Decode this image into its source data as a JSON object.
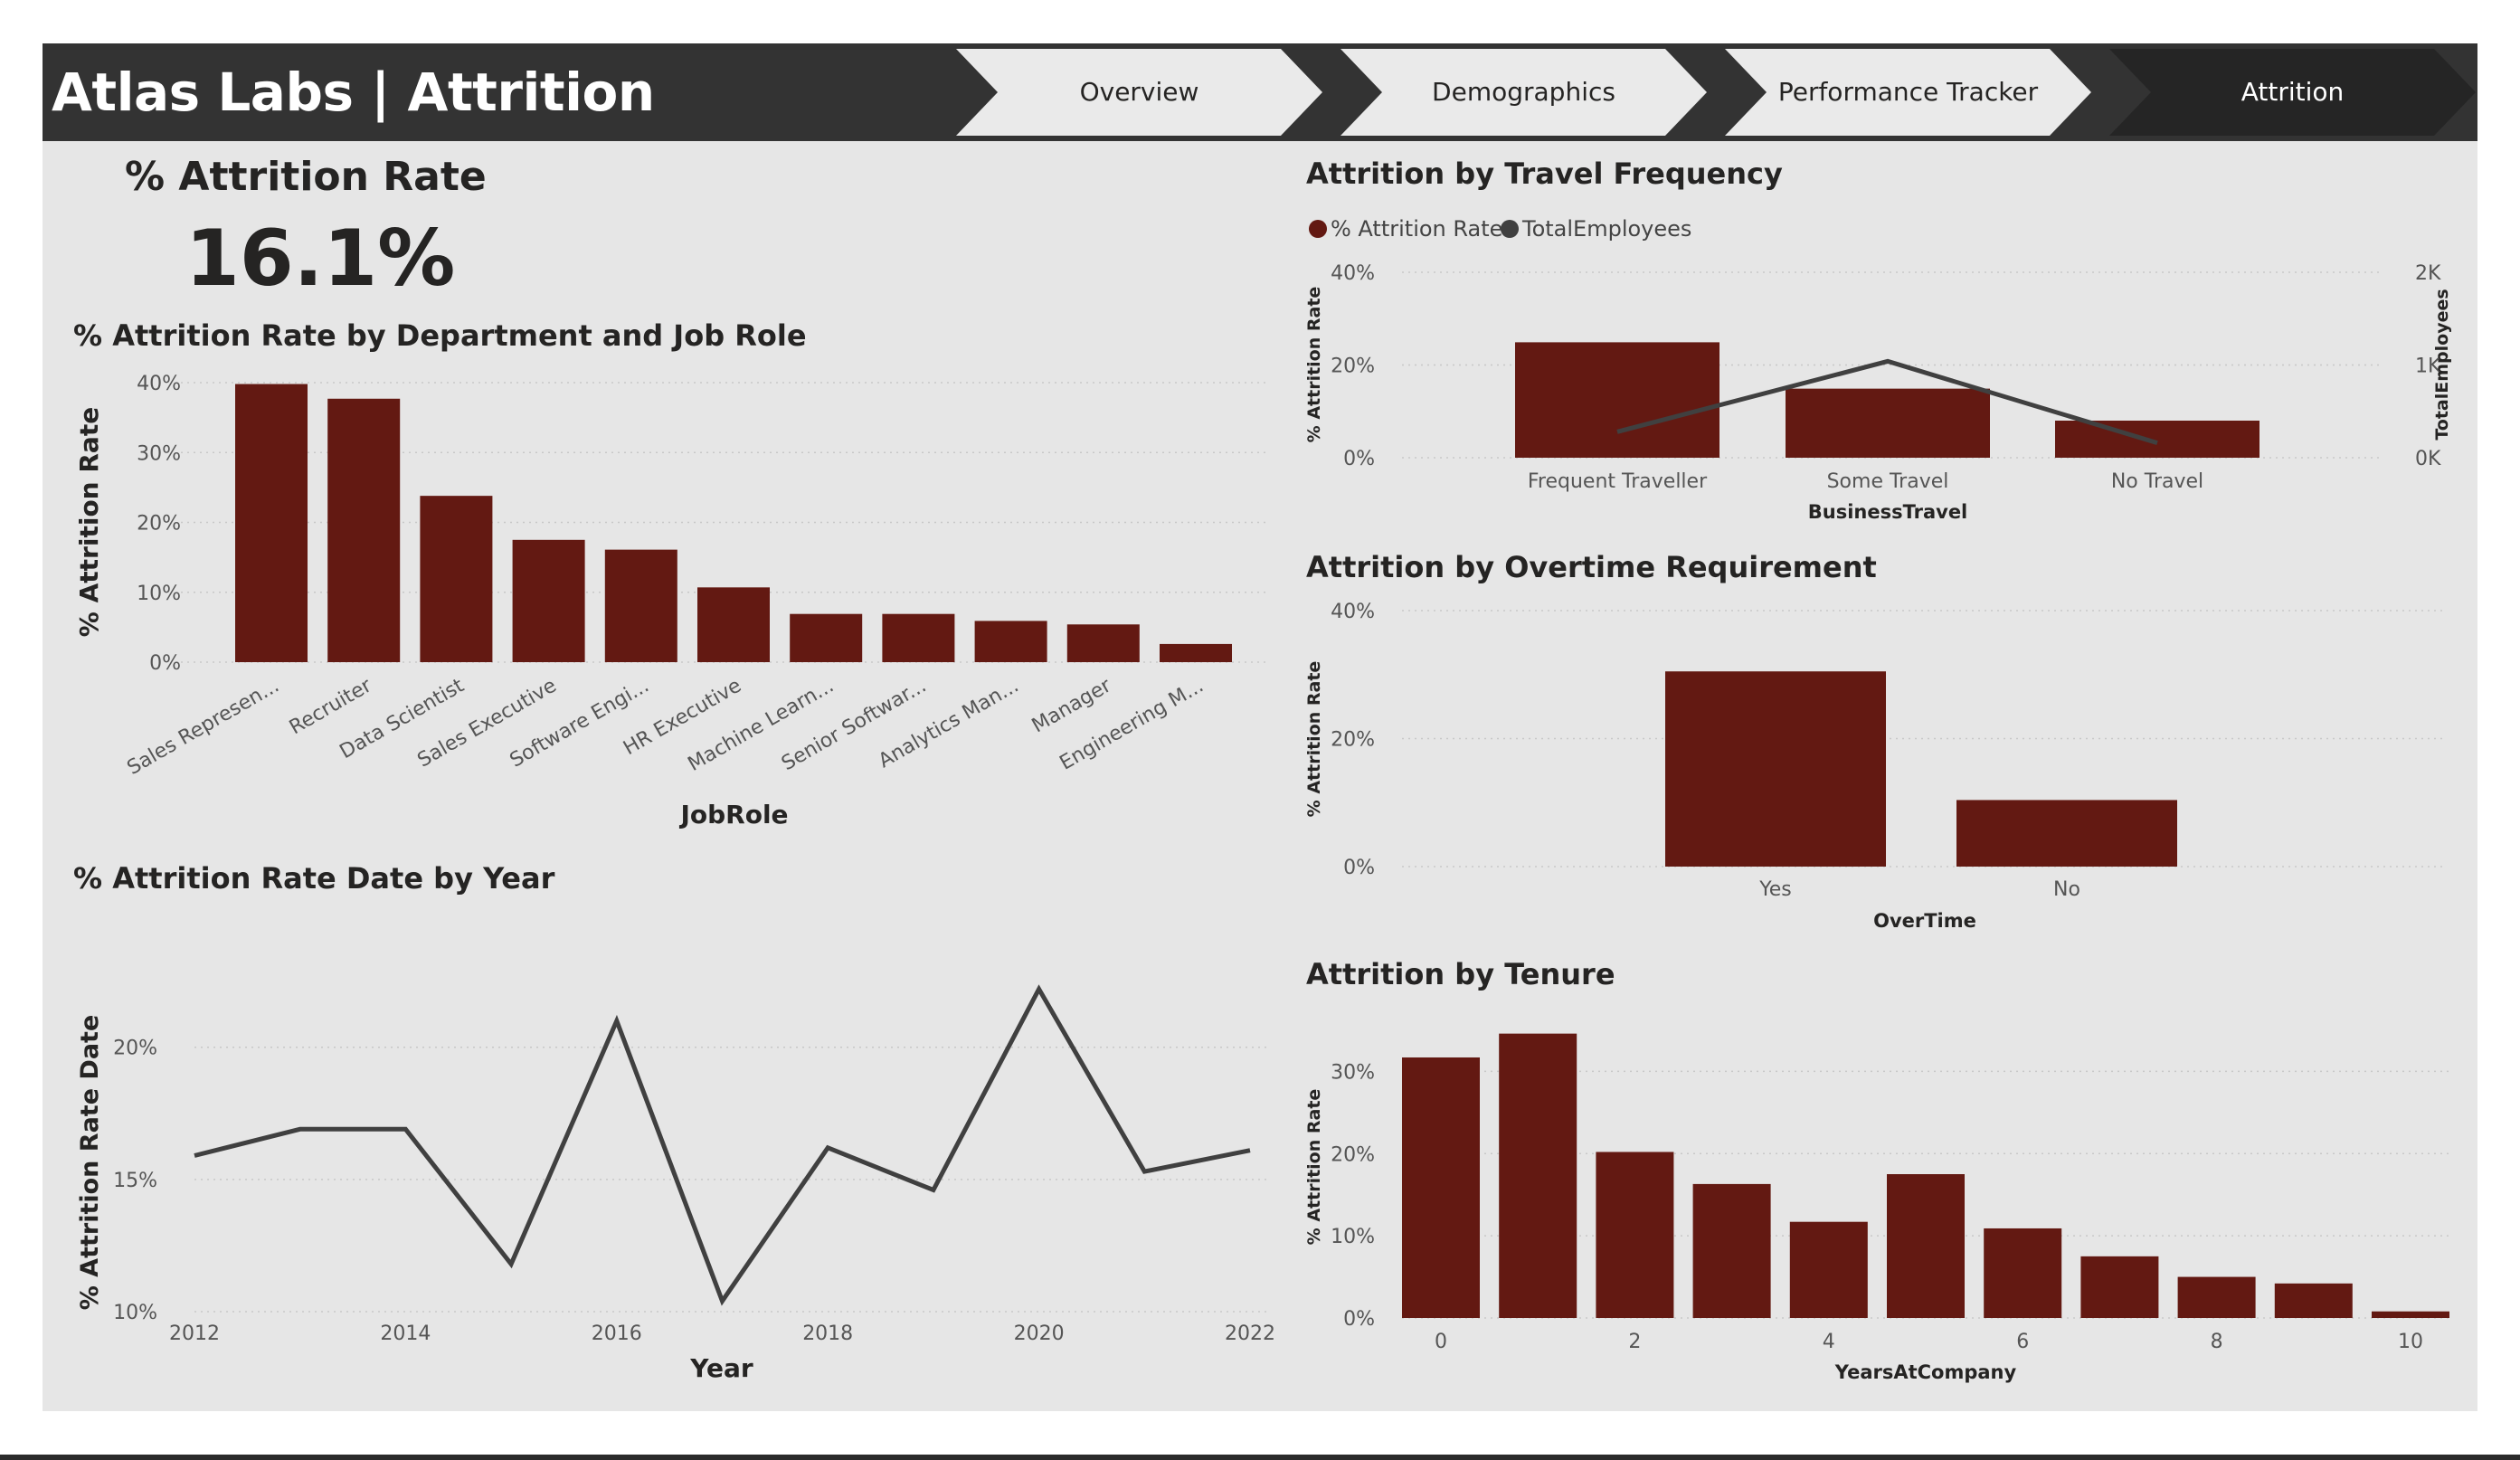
{
  "header": {
    "title": "Atlas Labs | Attrition",
    "tabs": [
      {
        "label": "Overview",
        "active": false
      },
      {
        "label": "Demographics",
        "active": false
      },
      {
        "label": "Performance Tracker",
        "active": false
      },
      {
        "label": "Attrition",
        "active": true
      }
    ]
  },
  "colors": {
    "bar": "#631912",
    "line": "#404040",
    "header_bg": "#333333",
    "tab_bg": "#eaeaea",
    "tab_active_bg": "#252525",
    "panel_bg": "#e6e6e6"
  },
  "kpi": {
    "title": "% Attrition Rate",
    "value": "16.1%"
  },
  "chart_data": [
    {
      "id": "job-role",
      "type": "bar",
      "title": "% Attrition Rate by Department and Job Role",
      "xlabel": "JobRole",
      "ylabel": "% Attrition Rate",
      "categories": [
        "Sales Represen...",
        "Recruiter",
        "Data Scientist",
        "Sales Executive",
        "Software Engi...",
        "HR Executive",
        "Machine Learn...",
        "Senior Softwar...",
        "Analytics Man...",
        "Manager",
        "Engineering M..."
      ],
      "values": [
        39.8,
        37.7,
        23.8,
        17.5,
        16.1,
        10.7,
        6.9,
        6.9,
        5.9,
        5.4,
        2.6
      ],
      "ylim": [
        0,
        40
      ],
      "yticks": [
        0,
        10,
        20,
        30,
        40
      ],
      "ytick_labels": [
        "0%",
        "10%",
        "20%",
        "30%",
        "40%"
      ],
      "grid": true
    },
    {
      "id": "year",
      "type": "line",
      "title": "% Attrition Rate Date by Year",
      "xlabel": "Year",
      "ylabel": "% Attrition Rate Date",
      "x": [
        2012,
        2013,
        2014,
        2015,
        2016,
        2017,
        2018,
        2019,
        2020,
        2021,
        2022
      ],
      "values": [
        15.9,
        16.9,
        16.9,
        11.8,
        21.0,
        10.4,
        16.2,
        14.6,
        22.2,
        15.3,
        16.1
      ],
      "xlim": [
        2012,
        2022
      ],
      "xticks": [
        2012,
        2014,
        2016,
        2018,
        2020,
        2022
      ],
      "ylim": [
        10,
        23
      ],
      "yticks": [
        10,
        15,
        20
      ],
      "ytick_labels": [
        "10%",
        "15%",
        "20%"
      ],
      "grid": true
    },
    {
      "id": "travel",
      "type": "bar",
      "title": "Attrition by Travel Frequency",
      "xlabel": "BusinessTravel",
      "ylabel": "% Attrition Rate",
      "y2label": "TotalEmployees",
      "legend": [
        "% Attrition Rate",
        "TotalEmployees"
      ],
      "legend_position": "top-left",
      "categories": [
        "Frequent Traveller",
        "Some Travel",
        "No Travel"
      ],
      "values": [
        24.9,
        14.9,
        8.0
      ],
      "line_values": [
        280,
        1040,
        160
      ],
      "ylim": [
        0,
        40
      ],
      "yticks": [
        0,
        20,
        40
      ],
      "ytick_labels": [
        "0%",
        "20%",
        "40%"
      ],
      "y2lim": [
        0,
        2000
      ],
      "y2ticks": [
        0,
        1000,
        2000
      ],
      "y2tick_labels": [
        "0K",
        "1K",
        "2K"
      ],
      "grid": true
    },
    {
      "id": "overtime",
      "type": "bar",
      "title": "Attrition by Overtime Requirement",
      "xlabel": "OverTime",
      "ylabel": "% Attrition Rate",
      "categories": [
        "Yes",
        "No"
      ],
      "values": [
        30.5,
        10.4
      ],
      "ylim": [
        0,
        40
      ],
      "yticks": [
        0,
        20,
        40
      ],
      "ytick_labels": [
        "0%",
        "20%",
        "40%"
      ],
      "grid": true
    },
    {
      "id": "tenure",
      "type": "bar",
      "title": "Attrition by Tenure",
      "xlabel": "YearsAtCompany",
      "ylabel": "% Attrition Rate",
      "categories": [
        0,
        1,
        2,
        3,
        4,
        5,
        6,
        7,
        8,
        9,
        10
      ],
      "values": [
        31.7,
        34.6,
        20.2,
        16.3,
        11.7,
        17.5,
        10.9,
        7.5,
        5.0,
        4.2,
        0.8
      ],
      "xticks": [
        0,
        2,
        4,
        6,
        8,
        10
      ],
      "ylim": [
        0,
        35
      ],
      "yticks": [
        0,
        10,
        20,
        30
      ],
      "ytick_labels": [
        "0%",
        "10%",
        "20%",
        "30%"
      ],
      "grid": true
    }
  ]
}
